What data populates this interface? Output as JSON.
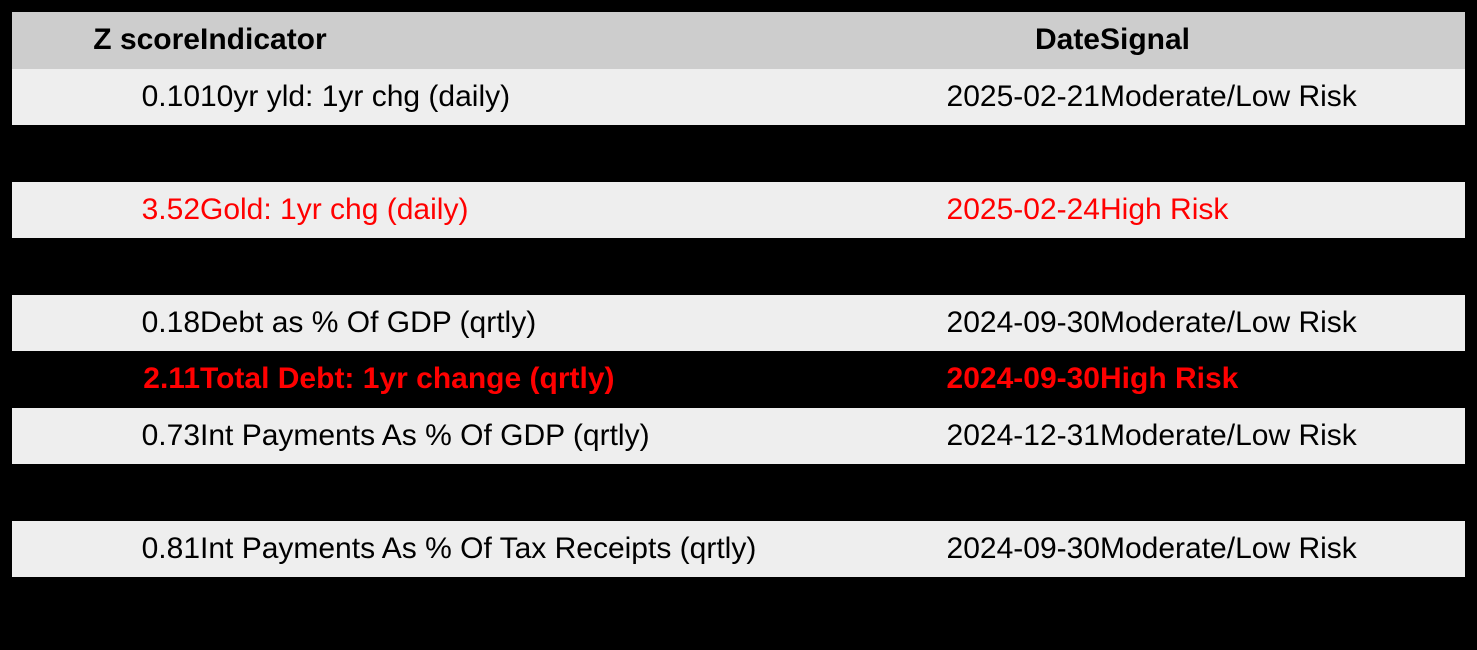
{
  "colors": {
    "background": "#000000",
    "header_bg": "#cdcdcd",
    "row_bg": "#eeeeee",
    "text": "#000000",
    "risk_red": "#ff0000"
  },
  "chart_data": {
    "type": "table",
    "title": "Risk indicator z-score signal table",
    "columns": [
      "Z score",
      "Indicator",
      "Date",
      "Signal"
    ],
    "rows": [
      {
        "z_score": "0.10",
        "indicator": "10yr yld: 1yr chg (daily)",
        "date": "2025-02-21",
        "signal": "Moderate/Low Risk",
        "highlight": "none"
      },
      {
        "z_score": "3.52",
        "indicator": "Gold: 1yr chg (daily)",
        "date": "2025-02-24",
        "signal": "High Risk",
        "highlight": "red-text"
      },
      {
        "z_score": "0.18",
        "indicator": "Debt as % Of GDP (qrtly)",
        "date": "2024-09-30",
        "signal": "Moderate/Low Risk",
        "highlight": "none"
      },
      {
        "z_score": "2.11",
        "indicator": "Total Debt: 1yr change (qrtly)",
        "date": "2024-09-30",
        "signal": "High Risk",
        "highlight": "red-bold-on-black"
      },
      {
        "z_score": "0.73",
        "indicator": "Int Payments As % Of GDP (qrtly)",
        "date": "2024-12-31",
        "signal": "Moderate/Low Risk",
        "highlight": "none"
      },
      {
        "z_score": "0.81",
        "indicator": "Int Payments As % Of Tax Receipts (qrtly)",
        "date": "2024-09-30",
        "signal": "Moderate/Low Risk",
        "highlight": "none"
      }
    ],
    "layout_hints": {
      "row_band_sequence": [
        "header",
        "data:0",
        "spacer",
        "data:1",
        "spacer",
        "data:2",
        "data:3",
        "data:4",
        "spacer",
        "data:5"
      ],
      "column_alignment": [
        "right",
        "left",
        "right",
        "left"
      ],
      "grid": false,
      "legend": false
    }
  }
}
